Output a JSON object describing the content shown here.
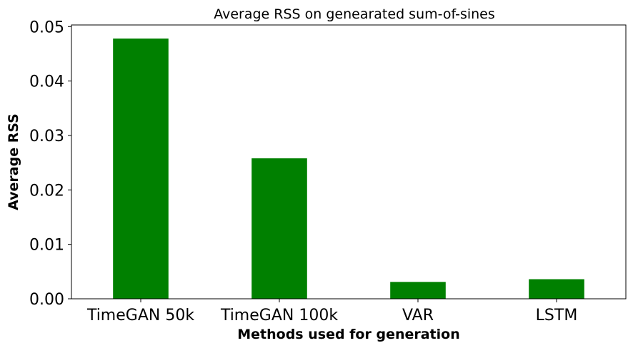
{
  "chart_data": {
    "type": "bar",
    "title": "Average RSS on genearated sum-of-sines",
    "xlabel": "Methods used for generation",
    "ylabel": "Average RSS",
    "categories": [
      "TimeGAN 50k",
      "TimeGAN 100k",
      "VAR",
      "LSTM"
    ],
    "values": [
      0.0478,
      0.0258,
      0.0031,
      0.0036
    ],
    "ylim": [
      0,
      0.0503
    ],
    "yticks": [
      0.0,
      0.01,
      0.02,
      0.03,
      0.04,
      0.05
    ],
    "ytick_labels": [
      "0.00",
      "0.01",
      "0.02",
      "0.03",
      "0.04",
      "0.05"
    ],
    "bar_color": "#008000",
    "grid": false,
    "legend": "none"
  }
}
